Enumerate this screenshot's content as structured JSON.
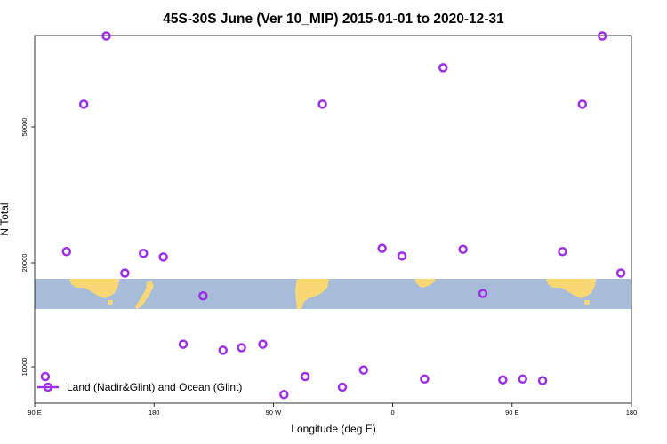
{
  "chart_data": {
    "type": "scatter",
    "title": "45S-30S June (Ver 10_MIP)   2015-01-01 to 2020-12-31",
    "xlabel": "Longitude (deg E)",
    "ylabel": "N Total",
    "x_axis": {
      "min": 90,
      "max": 540,
      "ticks": [
        {
          "value": 90,
          "label": "90 E"
        },
        {
          "value": 180,
          "label": "180"
        },
        {
          "value": 270,
          "label": "90 W"
        },
        {
          "value": 360,
          "label": "0"
        },
        {
          "value": 450,
          "label": "90 E"
        },
        {
          "value": 540,
          "label": "180"
        }
      ]
    },
    "y_axis": {
      "scale": "custom-breaks",
      "breaks": [
        {
          "value": 6300
        },
        {
          "value": 10000,
          "label": "10000"
        },
        {
          "value": 14600
        },
        {
          "value": 17500
        },
        {
          "value": 20000,
          "label": "20000"
        },
        {
          "value": 50000,
          "label": "50000"
        },
        {
          "value": 74000
        }
      ]
    },
    "map_band": {
      "lat_from": -45,
      "lat_to": -30,
      "ocean_color": "#a7bcd9",
      "land_color": "#f9d774"
    },
    "grid": false,
    "legend": {
      "position": "bottom-left",
      "entries": [
        "Land (Nadir&Glint) and Ocean (Glint)"
      ]
    },
    "series": [
      {
        "name": "Land (Nadir&Glint) and Ocean (Glint)",
        "color": "#9b30e6",
        "x": [
          98,
          114,
          127,
          144,
          158,
          172,
          187,
          202,
          217,
          232,
          246,
          262,
          278,
          294,
          307,
          322,
          338,
          352,
          367,
          384,
          398,
          413,
          428,
          443,
          458,
          473,
          488,
          503,
          518,
          532
        ],
        "y": [
          8800,
          22500,
          55000,
          70000,
          19200,
          22100,
          21300,
          12600,
          17400,
          11900,
          12200,
          12600,
          6600,
          8800,
          55000,
          7500,
          9600,
          23200,
          21500,
          8500,
          63000,
          23000,
          17600,
          8400,
          8500,
          8300,
          22500,
          55000,
          70000,
          19200
        ]
      }
    ]
  }
}
